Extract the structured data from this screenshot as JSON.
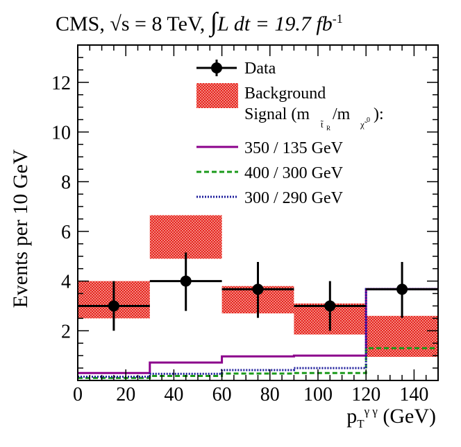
{
  "chart_data": {
    "type": "histogram",
    "title": "CMS, √s = 8 TeV, ∫L dt = 19.7 fb",
    "title_parts": {
      "experiment": "CMS,",
      "sqrt_s": "s = 8 TeV,",
      "lumi": "L dt = 19.7 fb",
      "lumi_exp": "-1"
    },
    "xlabel": "p",
    "xlabel_parts": {
      "sub": "T",
      "sup": "γ γ",
      "unit": "(GeV)"
    },
    "ylabel": "Events per 10 GeV",
    "xlim": [
      0,
      150
    ],
    "ylim": [
      0,
      13.5
    ],
    "x_ticks": [
      0,
      20,
      40,
      60,
      80,
      100,
      120,
      140
    ],
    "x_tick_labels": [
      "0",
      "20",
      "40",
      "60",
      "80",
      "100",
      "120",
      "140"
    ],
    "y_ticks": [
      2,
      4,
      6,
      8,
      10,
      12
    ],
    "y_tick_labels": [
      "2",
      "4",
      "6",
      "8",
      "10",
      "12"
    ],
    "bin_edges": [
      0,
      30,
      60,
      90,
      120,
      150
    ],
    "data": {
      "name": "Data",
      "x": [
        15,
        45,
        75,
        105,
        135
      ],
      "y": [
        3,
        4,
        3.67,
        3,
        3.67
      ],
      "xerr": [
        15,
        15,
        15,
        15,
        15
      ],
      "yerr_low": [
        1.0,
        1.2,
        1.15,
        1.0,
        1.15
      ],
      "yerr_high": [
        1.0,
        1.15,
        1.1,
        1.0,
        1.1
      ]
    },
    "background": {
      "name": "Background",
      "low": [
        2.5,
        4.9,
        2.7,
        1.85,
        0.95
      ],
      "high": [
        4.0,
        6.65,
        3.8,
        3.1,
        2.6
      ],
      "color": "#e8201c"
    },
    "signal_header": "Signal (m",
    "signal_header_parts": {
      "sub1": "t̃",
      "subsub1": "R",
      "mid": " /m",
      "sub2": "χ̃",
      "sup2": "0",
      "end": "):"
    },
    "signals": [
      {
        "name": "350 / 135 GeV",
        "color": "#8b008b",
        "style": "solid",
        "values": [
          0.3,
          0.72,
          0.97,
          1.0,
          3.68
        ]
      },
      {
        "name": "400 / 300 GeV",
        "color": "#1a9a1a",
        "style": "dashed",
        "values": [
          0.1,
          0.18,
          0.28,
          0.3,
          1.3
        ]
      },
      {
        "name": "300 / 290 GeV",
        "color": "#1a1a9a",
        "style": "dotted",
        "values": [
          0.15,
          0.27,
          0.42,
          0.5,
          3.68
        ]
      }
    ],
    "legend_position": "top-right"
  }
}
